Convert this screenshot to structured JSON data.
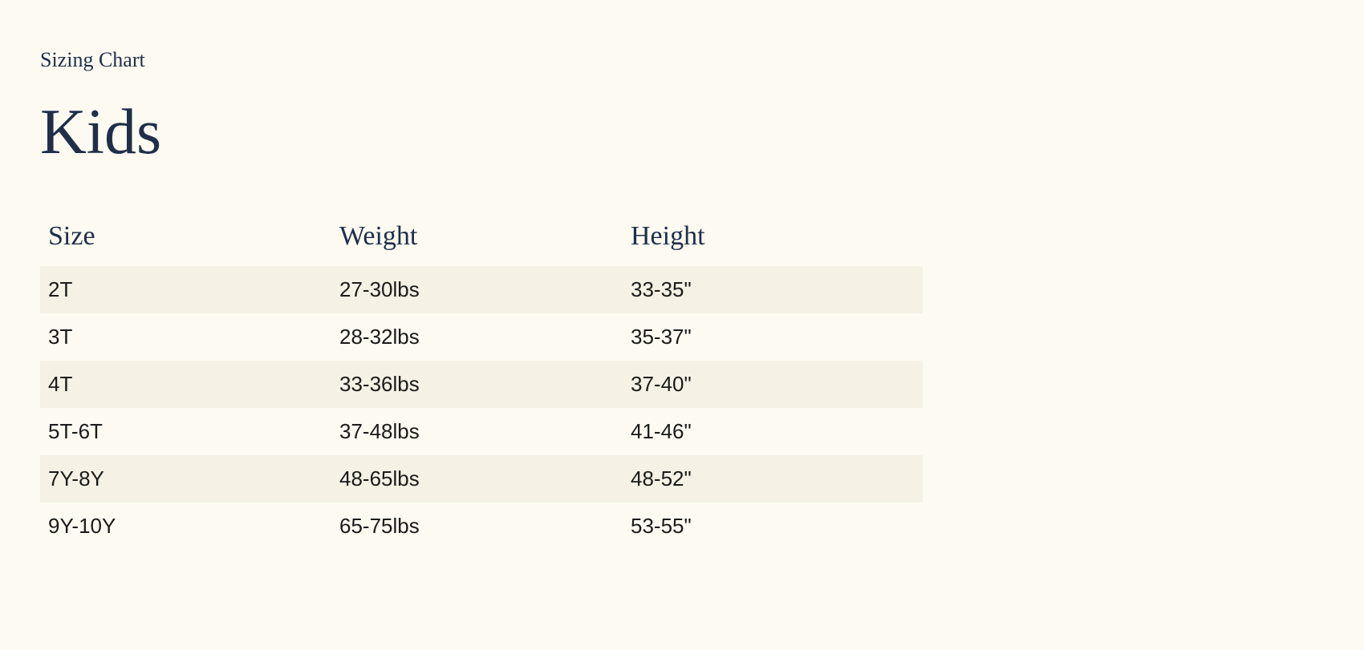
{
  "subtitle": "Sizing Chart",
  "title": "Kids",
  "table": {
    "type": "table",
    "background_color": "#fdfbf1",
    "row_odd_color": "#f5f1e4",
    "row_even_color": "#fdfbf1",
    "header_text_color": "#1f2f4a",
    "cell_text_color": "#1a1a1a",
    "header_fontsize": 34,
    "cell_fontsize": 26,
    "columns": [
      "Size",
      "Weight",
      "Height"
    ],
    "rows": [
      [
        "2T",
        "27-30lbs",
        "33-35\""
      ],
      [
        "3T",
        "28-32lbs",
        "35-37\""
      ],
      [
        "4T",
        "33-36lbs",
        "37-40\""
      ],
      [
        "5T-6T",
        "37-48lbs",
        "41-46\""
      ],
      [
        "7Y-8Y",
        "48-65lbs",
        "48-52\""
      ],
      [
        "9Y-10Y",
        "65-75lbs",
        "53-55\""
      ]
    ]
  }
}
